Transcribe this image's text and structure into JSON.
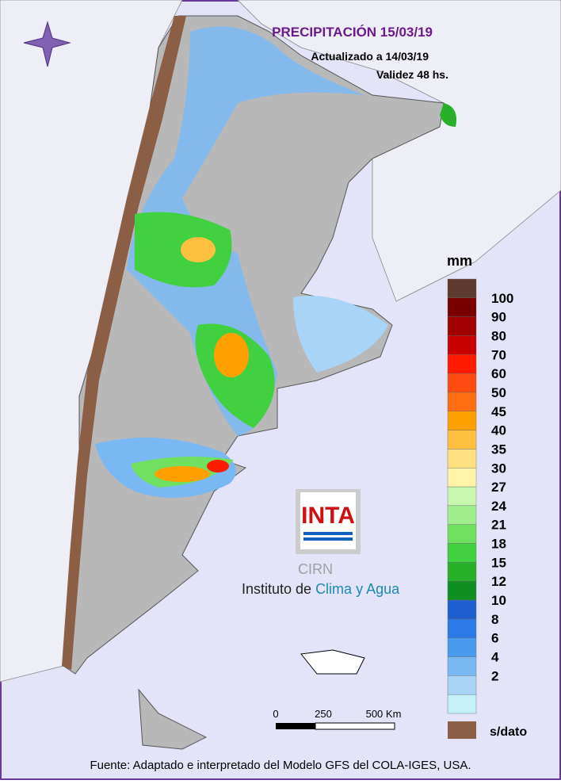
{
  "header": {
    "title": "PRECIPITACIÓN 15/03/19",
    "updated": "Actualizado a 14/03/19",
    "validity": "Validez 48 hs."
  },
  "legend": {
    "unit": "mm",
    "values": [
      100,
      90,
      80,
      70,
      60,
      50,
      45,
      40,
      35,
      30,
      27,
      24,
      21,
      18,
      15,
      12,
      10,
      8,
      6,
      4,
      2
    ],
    "colors": [
      "#5c3a2e",
      "#7a0000",
      "#a00000",
      "#c80000",
      "#ff1a00",
      "#ff4a10",
      "#ff6e10",
      "#ffa000",
      "#ffc040",
      "#ffe080",
      "#fff4a8",
      "#c8f8b0",
      "#a0f090",
      "#70e060",
      "#40d040",
      "#28b028",
      "#0f9020",
      "#1e5fd0",
      "#2c7ae8",
      "#4a9af0",
      "#7ab8f4",
      "#a8d4f8",
      "#c4f0f8"
    ],
    "no_data": "s/dato",
    "no_data_color": "#8b5e46"
  },
  "scale": {
    "labels": [
      "0",
      "250",
      "500 Km"
    ]
  },
  "logo": {
    "brand": "INTA",
    "unit": "CIRN",
    "institute_prefix": "Instituto de ",
    "institute_name": "Clima y Agua"
  },
  "footer": "Fuente: Adaptado e interpretado del Modelo GFS del COLA-IGES, USA."
}
